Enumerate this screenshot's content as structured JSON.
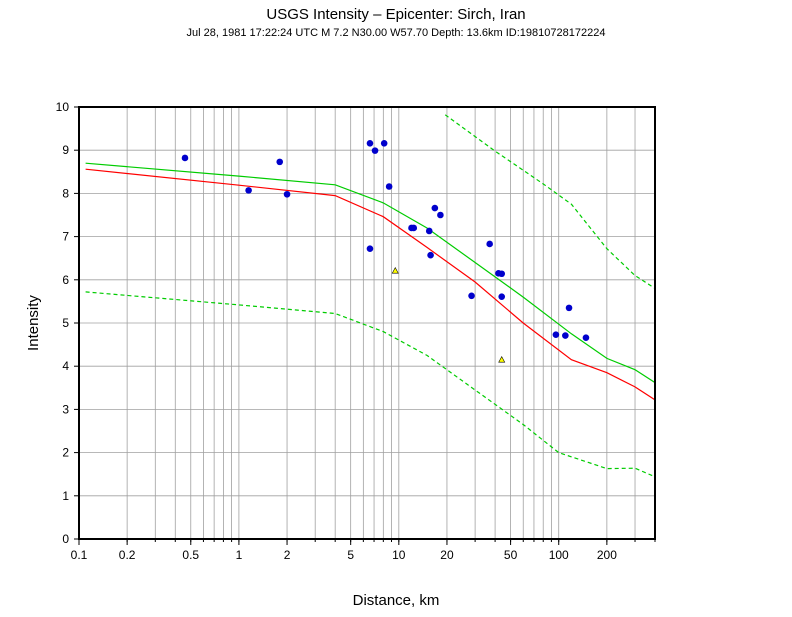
{
  "chart_data": {
    "type": "scatter",
    "title": "USGS Intensity –  Epicenter: Sirch, Iran",
    "subtitle": "Jul 28, 1981 17:22:24 UTC   M 7.2   N30.00 W57.70   Depth: 13.6km   ID:19810728172224",
    "xlabel": "Distance, km",
    "ylabel": "Intensity",
    "x_scale": "log",
    "xlim": [
      0.1,
      400
    ],
    "ylim": [
      0,
      10
    ],
    "grid": true,
    "x_ticks": [
      {
        "value": 0.1,
        "label": "0.1"
      },
      {
        "value": 0.2,
        "label": "0.2"
      },
      {
        "value": 0.5,
        "label": "0.5"
      },
      {
        "value": 1,
        "label": "1"
      },
      {
        "value": 2,
        "label": "2"
      },
      {
        "value": 5,
        "label": "5"
      },
      {
        "value": 10,
        "label": "10"
      },
      {
        "value": 20,
        "label": "20"
      },
      {
        "value": 50,
        "label": "50"
      },
      {
        "value": 100,
        "label": "100"
      },
      {
        "value": 200,
        "label": "200"
      }
    ],
    "y_ticks": [
      {
        "value": 0,
        "label": "0"
      },
      {
        "value": 1,
        "label": "1"
      },
      {
        "value": 2,
        "label": "2"
      },
      {
        "value": 3,
        "label": "3"
      },
      {
        "value": 4,
        "label": "4"
      },
      {
        "value": 5,
        "label": "5"
      },
      {
        "value": 6,
        "label": "6"
      },
      {
        "value": 7,
        "label": "7"
      },
      {
        "value": 8,
        "label": "8"
      },
      {
        "value": 9,
        "label": "9"
      },
      {
        "value": 10,
        "label": "10"
      }
    ],
    "series": [
      {
        "kind": "points",
        "marker": "circle",
        "color": "#0000cc",
        "points": [
          [
            0.46,
            8.82
          ],
          [
            1.15,
            8.07
          ],
          [
            1.8,
            8.73
          ],
          [
            2.0,
            7.98
          ],
          [
            6.6,
            9.16
          ],
          [
            7.1,
            8.99
          ],
          [
            8.1,
            9.16
          ],
          [
            8.7,
            8.16
          ],
          [
            6.6,
            6.72
          ],
          [
            12.0,
            7.2
          ],
          [
            12.4,
            7.2
          ],
          [
            15.5,
            7.13
          ],
          [
            16.8,
            7.66
          ],
          [
            18.2,
            7.5
          ],
          [
            15.8,
            6.57
          ],
          [
            28.5,
            5.63
          ],
          [
            37.0,
            6.83
          ],
          [
            42.0,
            6.15
          ],
          [
            44.0,
            6.14
          ],
          [
            44.0,
            5.61
          ],
          [
            96.0,
            4.73
          ],
          [
            110.0,
            4.71
          ],
          [
            116.0,
            5.35
          ],
          [
            148.0,
            4.66
          ]
        ]
      },
      {
        "kind": "points",
        "marker": "triangle",
        "color": "#ffff00",
        "points": [
          [
            9.5,
            6.2
          ],
          [
            44.0,
            4.14
          ]
        ]
      },
      {
        "kind": "line",
        "color": "#ff0000",
        "dash": false,
        "points": [
          [
            0.11,
            8.56
          ],
          [
            1.0,
            8.19
          ],
          [
            4.0,
            7.95
          ],
          [
            8.0,
            7.46
          ],
          [
            15.0,
            6.75
          ],
          [
            30.0,
            5.95
          ],
          [
            60.0,
            5.0
          ],
          [
            120.0,
            4.15
          ],
          [
            200.0,
            3.85
          ],
          [
            300.0,
            3.52
          ],
          [
            400.0,
            3.22
          ]
        ]
      },
      {
        "kind": "line",
        "color": "#00cc00",
        "dash": false,
        "points": [
          [
            0.11,
            8.7
          ],
          [
            1.0,
            8.4
          ],
          [
            4.0,
            8.2
          ],
          [
            8.0,
            7.78
          ],
          [
            15.0,
            7.2
          ],
          [
            30.0,
            6.4
          ],
          [
            60.0,
            5.6
          ],
          [
            120.0,
            4.75
          ],
          [
            200.0,
            4.18
          ],
          [
            300.0,
            3.92
          ],
          [
            400.0,
            3.62
          ]
        ]
      },
      {
        "kind": "line",
        "color": "#00cc00",
        "dash": true,
        "points": [
          [
            0.11,
            5.72
          ],
          [
            1.0,
            5.42
          ],
          [
            4.0,
            5.22
          ],
          [
            8.0,
            4.8
          ],
          [
            15.0,
            4.25
          ],
          [
            30.0,
            3.45
          ],
          [
            60.0,
            2.65
          ],
          [
            100.0,
            2.0
          ],
          [
            200.0,
            1.63
          ],
          [
            300.0,
            1.64
          ],
          [
            400.0,
            1.44
          ]
        ]
      },
      {
        "kind": "line",
        "color": "#00cc00",
        "dash": true,
        "points": [
          [
            19.5,
            9.82
          ],
          [
            40.0,
            8.98
          ],
          [
            80.0,
            8.22
          ],
          [
            120.0,
            7.75
          ],
          [
            200.0,
            6.72
          ],
          [
            300.0,
            6.1
          ],
          [
            400.0,
            5.8
          ]
        ]
      }
    ]
  }
}
